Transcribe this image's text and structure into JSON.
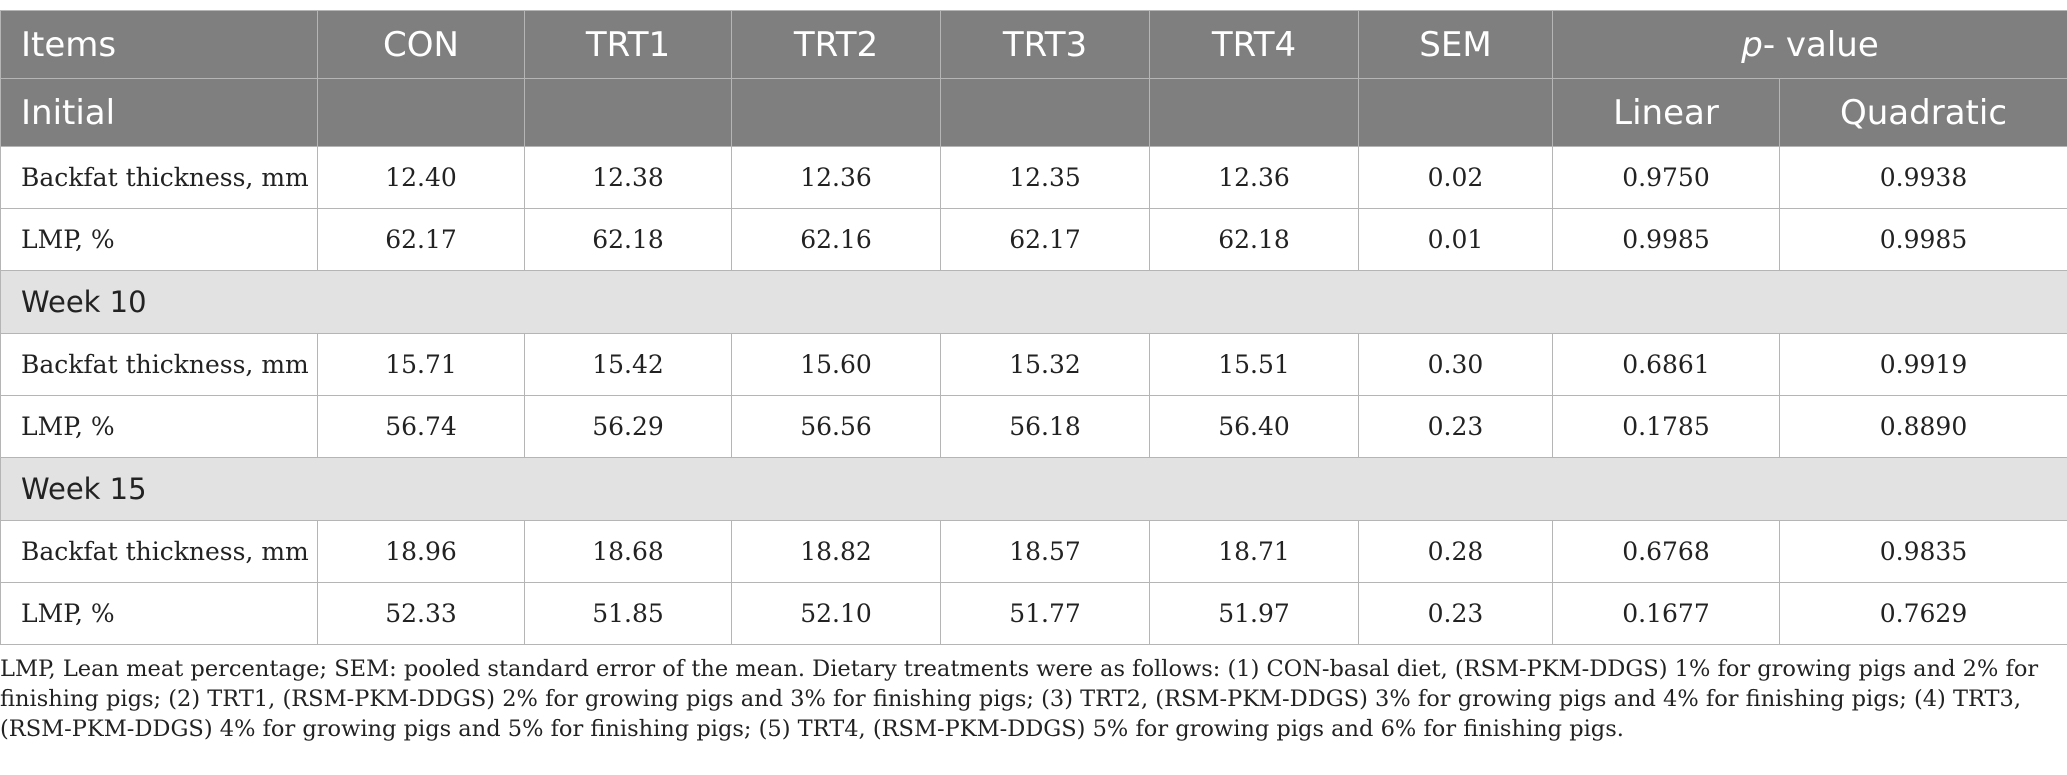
{
  "table": {
    "header_row1": {
      "items": "Items",
      "con": "CON",
      "trt1": "TRT1",
      "trt2": "TRT2",
      "trt3": "TRT3",
      "trt4": "TRT4",
      "sem": "SEM",
      "pvalue_prefix": "p",
      "pvalue_suffix": "- value"
    },
    "header_row2": {
      "initial": "Initial",
      "linear": "Linear",
      "quadratic": "Quadratic"
    },
    "rows": [
      {
        "item": "Backfat thickness, mm",
        "con": "12.40",
        "trt1": "12.38",
        "trt2": "12.36",
        "trt3": "12.35",
        "trt4": "12.36",
        "sem": "0.02",
        "linear": "0.9750",
        "quadratic": "0.9938"
      },
      {
        "item": "LMP, %",
        "con": "62.17",
        "trt1": "62.18",
        "trt2": "62.16",
        "trt3": "62.17",
        "trt4": "62.18",
        "sem": "0.01",
        "linear": "0.9985",
        "quadratic": "0.9985"
      },
      {
        "item": "Backfat thickness, mm",
        "con": "15.71",
        "trt1": "15.42",
        "trt2": "15.60",
        "trt3": "15.32",
        "trt4": "15.51",
        "sem": "0.30",
        "linear": "0.6861",
        "quadratic": "0.9919"
      },
      {
        "item": "LMP, %",
        "con": "56.74",
        "trt1": "56.29",
        "trt2": "56.56",
        "trt3": "56.18",
        "trt4": "56.40",
        "sem": "0.23",
        "linear": "0.1785",
        "quadratic": "0.8890"
      },
      {
        "item": "Backfat thickness, mm",
        "con": "18.96",
        "trt1": "18.68",
        "trt2": "18.82",
        "trt3": "18.57",
        "trt4": "18.71",
        "sem": "0.28",
        "linear": "0.6768",
        "quadratic": "0.9835"
      },
      {
        "item": "LMP, %",
        "con": "52.33",
        "trt1": "51.85",
        "trt2": "52.10",
        "trt3": "51.77",
        "trt4": "51.97",
        "sem": "0.23",
        "linear": "0.1677",
        "quadratic": "0.7629"
      }
    ],
    "sections": [
      "Week 10",
      "Week 15"
    ]
  },
  "footnote": "LMP, Lean meat percentage; SEM: pooled standard error of the mean. Dietary treatments were as follows: (1) CON-basal diet, (RSM-PKM-DDGS) 1% for growing pigs and 2% for finishing pigs; (2) TRT1, (RSM-PKM-DDGS) 2% for growing pigs and 3% for finishing pigs; (3) TRT2, (RSM-PKM-DDGS) 3% for growing pigs and 4% for finishing pigs; (4) TRT3, (RSM-PKM-DDGS) 4% for growing pigs and 5% for finishing pigs; (5) TRT4, (RSM-PKM-DDGS) 5% for growing pigs and 6% for finishing pigs."
}
